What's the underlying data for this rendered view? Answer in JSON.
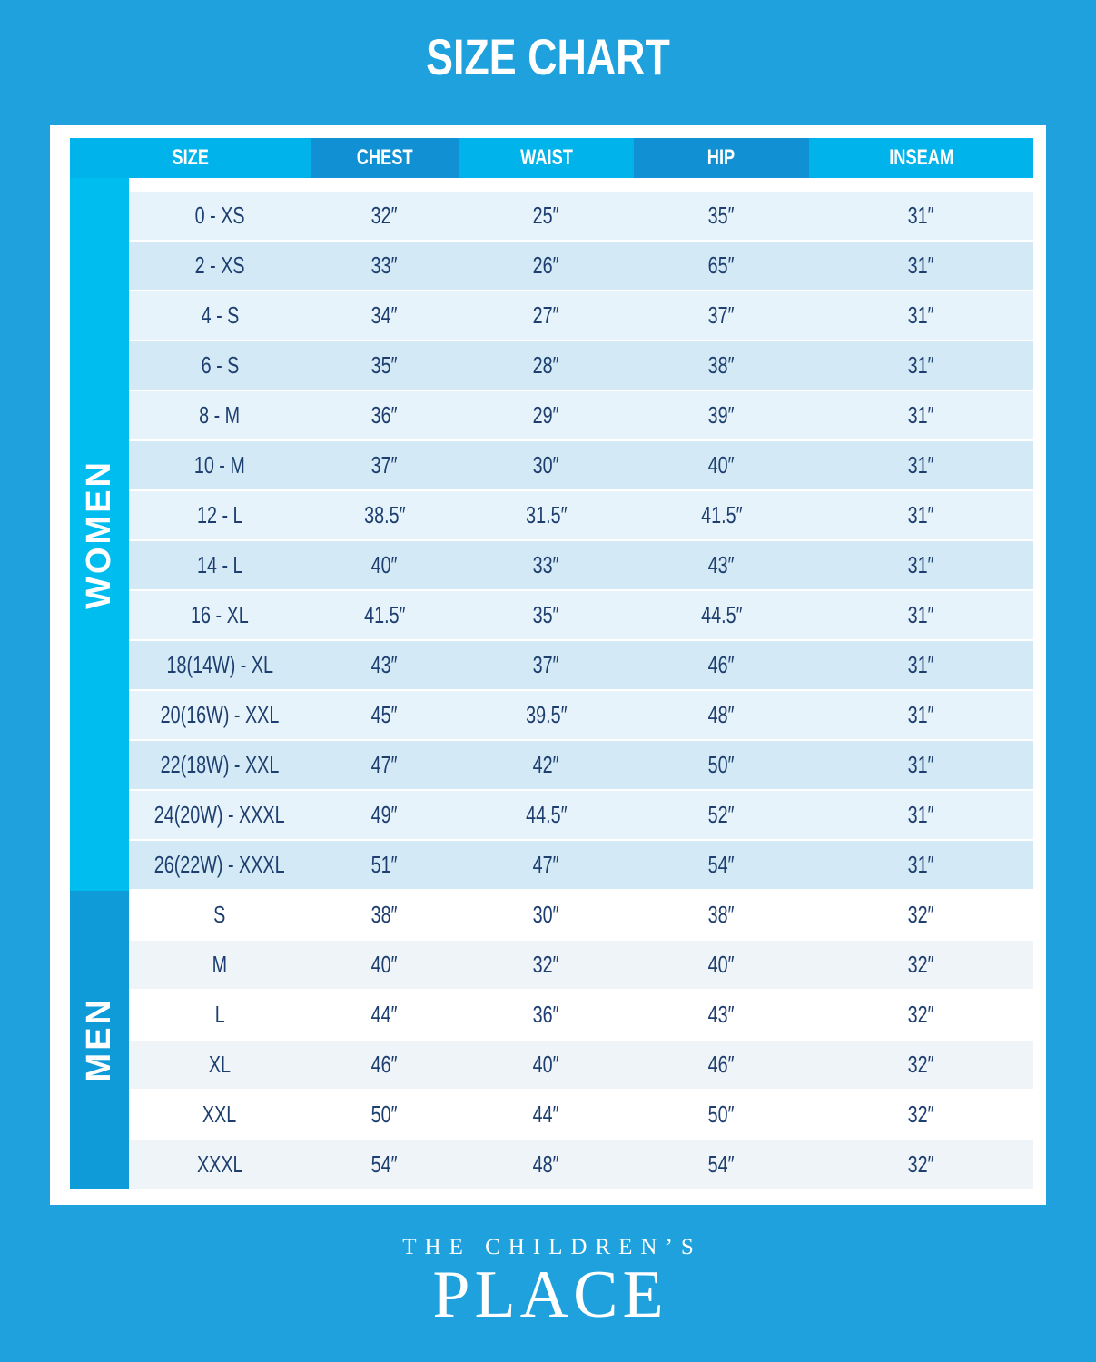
{
  "title": "SIZE CHART",
  "chart_data": {
    "type": "table",
    "title": "SIZE CHART",
    "columns": [
      "SIZE",
      "CHEST",
      "WAIST",
      "HIP",
      "INSEAM"
    ],
    "sections": [
      {
        "label": "WOMEN",
        "rows": [
          [
            "0 - XS",
            "32″",
            "25″",
            "35″",
            "31″"
          ],
          [
            "2 - XS",
            "33″",
            "26″",
            "65″",
            "31″"
          ],
          [
            "4 - S",
            "34″",
            "27″",
            "37″",
            "31″"
          ],
          [
            "6 - S",
            "35″",
            "28″",
            "38″",
            "31″"
          ],
          [
            "8 - M",
            "36″",
            "29″",
            "39″",
            "31″"
          ],
          [
            "10 - M",
            "37″",
            "30″",
            "40″",
            "31″"
          ],
          [
            "12 - L",
            "38.5″",
            "31.5″",
            "41.5″",
            "31″"
          ],
          [
            "14 - L",
            "40″",
            "33″",
            "43″",
            "31″"
          ],
          [
            "16 - XL",
            "41.5″",
            "35″",
            "44.5″",
            "31″"
          ],
          [
            "18(14W) - XL",
            "43″",
            "37″",
            "46″",
            "31″"
          ],
          [
            "20(16W) - XXL",
            "45″",
            "39.5″",
            "48″",
            "31″"
          ],
          [
            "22(18W) - XXL",
            "47″",
            "42″",
            "50″",
            "31″"
          ],
          [
            "24(20W) - XXXL",
            "49″",
            "44.5″",
            "52″",
            "31″"
          ],
          [
            "26(22W) - XXXL",
            "51″",
            "47″",
            "54″",
            "31″"
          ]
        ]
      },
      {
        "label": "MEN",
        "rows": [
          [
            "S",
            "38″",
            "30″",
            "38″",
            "32″"
          ],
          [
            "M",
            "40″",
            "32″",
            "40″",
            "32″"
          ],
          [
            "L",
            "44″",
            "36″",
            "43″",
            "32″"
          ],
          [
            "XL",
            "46″",
            "40″",
            "46″",
            "32″"
          ],
          [
            "XXL",
            "50″",
            "44″",
            "50″",
            "32″"
          ],
          [
            "XXXL",
            "54″",
            "48″",
            "54″",
            "32″"
          ]
        ]
      }
    ]
  },
  "brand": {
    "line1": "THE CHILDREN’S",
    "line2": "PLACE"
  },
  "colors": {
    "background": "#1EA1DC",
    "frame": "#FFFFFF",
    "header_light": "#00B3EA",
    "header_dark": "#1191D3",
    "women_bar": "#00BDF0",
    "men_bar": "#0E9BD8",
    "women_row_light": "#E6F3FA",
    "women_row_shade": "#D3EAF6",
    "men_row_white": "#FFFFFF",
    "men_row_shade": "#EEF4F8",
    "text_navy": "#1D3E6F"
  }
}
